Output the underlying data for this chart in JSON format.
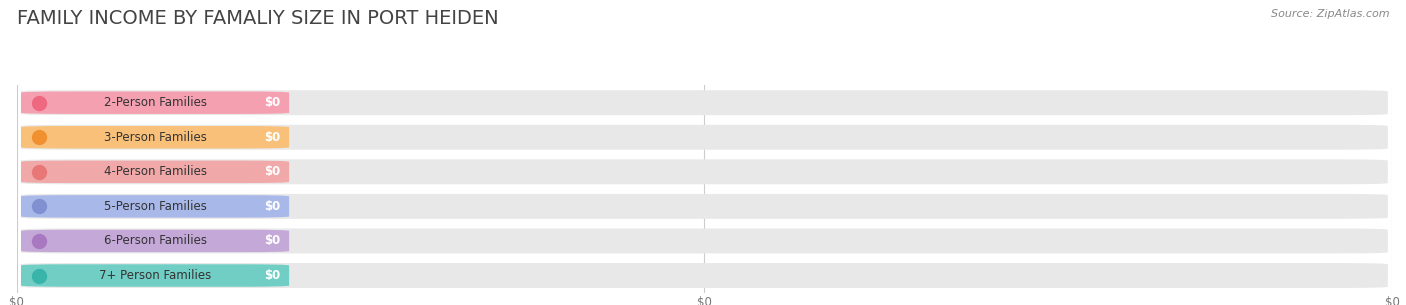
{
  "title": "FAMILY INCOME BY FAMALIY SIZE IN PORT HEIDEN",
  "source": "Source: ZipAtlas.com",
  "categories": [
    "2-Person Families",
    "3-Person Families",
    "4-Person Families",
    "5-Person Families",
    "6-Person Families",
    "7+ Person Families"
  ],
  "values": [
    0,
    0,
    0,
    0,
    0,
    0
  ],
  "bar_colors": [
    "#f5a0b0",
    "#f9c07a",
    "#f0a8a8",
    "#a8b8e8",
    "#c4a8d8",
    "#70cec4"
  ],
  "dot_colors": [
    "#ee6880",
    "#f09030",
    "#e87878",
    "#8090d0",
    "#a878c0",
    "#38b4a8"
  ],
  "row_bg_colors": [
    "#f5f5f5",
    "#efefef"
  ],
  "bar_bg_color": "#e8e8e8",
  "background_color": "#ffffff",
  "title_fontsize": 14,
  "source_fontsize": 8,
  "label_fontsize": 8.5,
  "value_fontsize": 8.5,
  "xtick_labels": [
    "$0",
    "$0",
    "$0"
  ],
  "xtick_positions": [
    0.0,
    0.5,
    1.0
  ]
}
